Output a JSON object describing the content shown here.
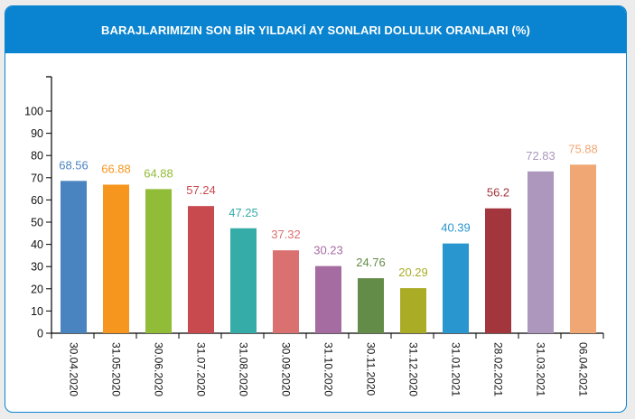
{
  "header": {
    "title": "BARAJLARIMIZIN SON BİR YILDAKİ AY SONLARI DOLULUK ORANLARI (%)",
    "background": "#0a84d0"
  },
  "chart_data": {
    "type": "bar",
    "title": "BARAJLARIMIZIN SON BİR YILDAKİ AY SONLARI DOLULUK ORANLARI (%)",
    "xlabel": "",
    "ylabel": "",
    "ylim": [
      0,
      115
    ],
    "yticks": [
      0,
      10,
      20,
      30,
      40,
      50,
      60,
      70,
      80,
      90,
      100
    ],
    "grid": false,
    "legend": "none",
    "categories": [
      "30.04.2020",
      "31.05.2020",
      "30.06.2020",
      "31.07.2020",
      "31.08.2020",
      "30.09.2020",
      "31.10.2020",
      "30.11.2020",
      "31.12.2020",
      "31.01.2021",
      "28.02.2021",
      "31.03.2021",
      "06.04.2021"
    ],
    "values": [
      68.56,
      66.88,
      64.88,
      57.24,
      47.25,
      37.32,
      30.23,
      24.76,
      20.29,
      40.39,
      56.2,
      72.83,
      75.88
    ],
    "value_labels": [
      "68.56",
      "66.88",
      "64.88",
      "57.24",
      "47.25",
      "37.32",
      "30.23",
      "24.76",
      "20.29",
      "40.39",
      "56.2",
      "72.83",
      "75.88"
    ],
    "colors": [
      "#4a84c0",
      "#f7961e",
      "#91bc38",
      "#c84a4e",
      "#36aca8",
      "#da7070",
      "#a56ca2",
      "#638c48",
      "#aaac26",
      "#2996cf",
      "#a3353d",
      "#ad97bd",
      "#f0a774"
    ]
  }
}
